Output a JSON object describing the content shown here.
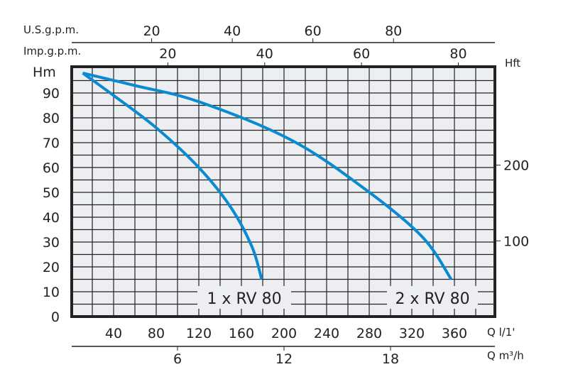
{
  "chart_data": {
    "type": "line",
    "title": "",
    "xlabel": "Q l/1'",
    "ylabel": "Hm",
    "xlim": [
      0,
      398
    ],
    "ylim": [
      0,
      100
    ],
    "grid": true,
    "x_ticks": [
      40,
      80,
      120,
      160,
      200,
      240,
      280,
      320,
      360
    ],
    "y_ticks": [
      0,
      10,
      20,
      30,
      40,
      50,
      60,
      70,
      80,
      90
    ],
    "secondary_axes": {
      "us_gpm": {
        "label": "U.S.g.p.m.",
        "ticks": [
          20,
          40,
          60,
          80
        ]
      },
      "imp_gpm": {
        "label": "Imp.g.p.m.",
        "ticks": [
          20,
          40,
          60,
          80
        ]
      },
      "hft": {
        "label": "Hft",
        "ticks": [
          100,
          200
        ]
      },
      "m3h": {
        "label": "Q m³/h",
        "ticks": [
          6,
          12,
          18
        ]
      }
    },
    "series": [
      {
        "name": "1 x RV 80",
        "x": [
          11,
          40,
          80,
          120,
          150,
          170,
          179
        ],
        "y": [
          98,
          89,
          76,
          60,
          44,
          28,
          15
        ]
      },
      {
        "name": "2 x RV 80",
        "x": [
          11,
          60,
          120,
          207,
          277,
          330,
          357
        ],
        "y": [
          98,
          93,
          86.5,
          71,
          51,
          32,
          15
        ]
      }
    ],
    "color": "#0a8ad0"
  }
}
